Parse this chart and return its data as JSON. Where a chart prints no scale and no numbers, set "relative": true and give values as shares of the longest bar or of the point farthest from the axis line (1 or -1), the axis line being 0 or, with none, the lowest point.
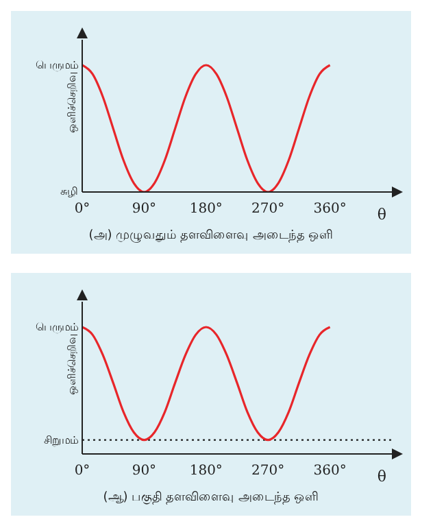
{
  "chart_data": [
    {
      "type": "line",
      "title": "(அ) முழுவதும் தளவிளைவு அடைந்த ஒளி",
      "xlabel": "θ",
      "ylabel": "ஒளிச்செறிவு",
      "x": [
        0,
        15,
        30,
        45,
        60,
        75,
        90,
        105,
        120,
        135,
        150,
        165,
        180,
        195,
        210,
        225,
        240,
        255,
        270,
        285,
        300,
        315,
        330,
        345,
        360
      ],
      "series": [
        {
          "color": "#e8262a",
          "values": [
            1,
            0.93,
            0.75,
            0.5,
            0.25,
            0.07,
            0,
            0.07,
            0.25,
            0.5,
            0.75,
            0.93,
            1,
            0.93,
            0.75,
            0.5,
            0.25,
            0.07,
            0,
            0.07,
            0.25,
            0.5,
            0.75,
            0.93,
            1
          ]
        }
      ],
      "xlim": [
        0,
        450
      ],
      "xticks": [
        {
          "value": 0,
          "label": "0°"
        },
        {
          "value": 90,
          "label": "90°"
        },
        {
          "value": 180,
          "label": "180°"
        },
        {
          "value": 270,
          "label": "270°"
        },
        {
          "value": 360,
          "label": "360°"
        }
      ],
      "relative": true,
      "annotations": [
        "பெருமம்",
        "சுழி"
      ],
      "grid": false,
      "legend": false,
      "marker": "none",
      "line_style": "solid"
    },
    {
      "type": "line",
      "title": "(ஆ) பகுதி தளவிளைவு அடைந்த ஒளி",
      "xlabel": "θ",
      "ylabel": "ஒளிச்செறிவு",
      "x": [
        0,
        15,
        30,
        45,
        60,
        75,
        90,
        105,
        120,
        135,
        150,
        165,
        180,
        195,
        210,
        225,
        240,
        255,
        270,
        285,
        300,
        315,
        330,
        345,
        360
      ],
      "series": [
        {
          "color": "#e8262a",
          "values": [
            1,
            0.94,
            0.78,
            0.56,
            0.33,
            0.17,
            0.11,
            0.17,
            0.33,
            0.56,
            0.78,
            0.94,
            1,
            0.94,
            0.78,
            0.56,
            0.33,
            0.17,
            0.11,
            0.17,
            0.33,
            0.56,
            0.78,
            0.94,
            1
          ]
        }
      ],
      "xlim": [
        0,
        450
      ],
      "xticks": [
        {
          "value": 0,
          "label": "0°"
        },
        {
          "value": 90,
          "label": "90°"
        },
        {
          "value": 180,
          "label": "180°"
        },
        {
          "value": 270,
          "label": "270°"
        },
        {
          "value": 360,
          "label": "360°"
        }
      ],
      "relative": true,
      "annotations": [
        "பெருமம்"
      ],
      "ref_lines": [
        {
          "axis": "y",
          "value": 0.11,
          "label": "சிறுமம்",
          "color": "#222222",
          "line_style": "dotted"
        }
      ],
      "grid": false,
      "legend": false,
      "marker": "none",
      "line_style": "solid"
    }
  ]
}
